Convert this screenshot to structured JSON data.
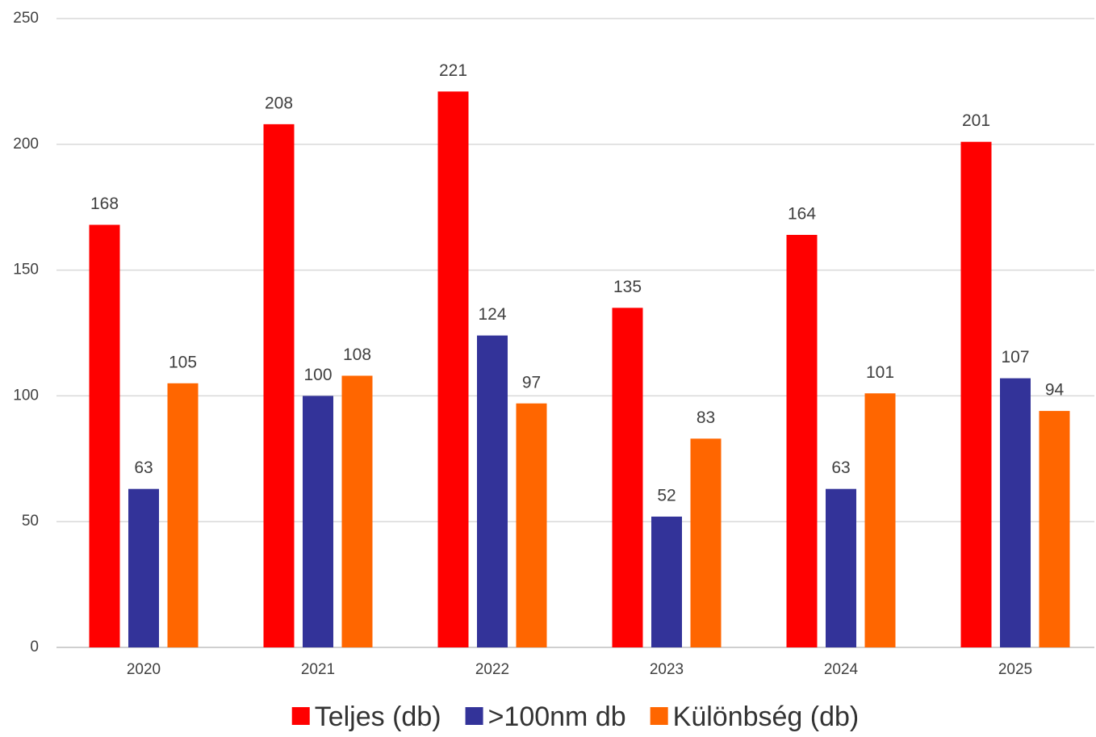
{
  "chart_data": {
    "type": "bar",
    "categories": [
      "2020",
      "2021",
      "2022",
      "2023",
      "2024",
      "2025"
    ],
    "series": [
      {
        "name": "Teljes (db)",
        "color": "#ff0000",
        "values": [
          168,
          208,
          221,
          135,
          164,
          201
        ]
      },
      {
        "name": ">100nm db",
        "color": "#333399",
        "values": [
          63,
          100,
          124,
          52,
          63,
          107
        ]
      },
      {
        "name": "Különbség (db)",
        "color": "#ff6600",
        "values": [
          105,
          108,
          97,
          83,
          101,
          94
        ]
      }
    ],
    "ylim": [
      0,
      250
    ],
    "yticks": [
      0,
      50,
      100,
      150,
      200,
      250
    ],
    "grid": true,
    "legend": "bottom"
  }
}
